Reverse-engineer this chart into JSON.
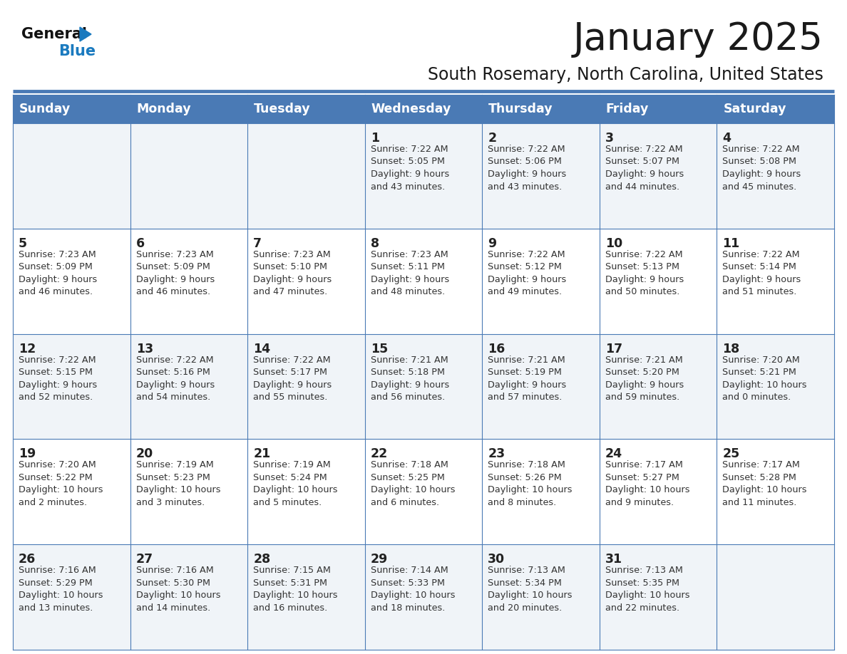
{
  "title": "January 2025",
  "subtitle": "South Rosemary, North Carolina, United States",
  "days_of_week": [
    "Sunday",
    "Monday",
    "Tuesday",
    "Wednesday",
    "Thursday",
    "Friday",
    "Saturday"
  ],
  "header_bg": "#4a7ab5",
  "header_text": "#ffffff",
  "row_bg_light": "#f0f4f8",
  "row_bg_white": "#ffffff",
  "cell_border_color": "#4a7ab5",
  "day_num_color": "#222222",
  "info_text_color": "#333333",
  "title_color": "#1a1a1a",
  "subtitle_color": "#1a1a1a",
  "logo_black": "#111111",
  "logo_blue": "#1a7abf",
  "separator_color": "#4a7ab5",
  "calendar": [
    [
      {
        "day": null,
        "info": ""
      },
      {
        "day": null,
        "info": ""
      },
      {
        "day": null,
        "info": ""
      },
      {
        "day": 1,
        "info": "Sunrise: 7:22 AM\nSunset: 5:05 PM\nDaylight: 9 hours\nand 43 minutes."
      },
      {
        "day": 2,
        "info": "Sunrise: 7:22 AM\nSunset: 5:06 PM\nDaylight: 9 hours\nand 43 minutes."
      },
      {
        "day": 3,
        "info": "Sunrise: 7:22 AM\nSunset: 5:07 PM\nDaylight: 9 hours\nand 44 minutes."
      },
      {
        "day": 4,
        "info": "Sunrise: 7:22 AM\nSunset: 5:08 PM\nDaylight: 9 hours\nand 45 minutes."
      }
    ],
    [
      {
        "day": 5,
        "info": "Sunrise: 7:23 AM\nSunset: 5:09 PM\nDaylight: 9 hours\nand 46 minutes."
      },
      {
        "day": 6,
        "info": "Sunrise: 7:23 AM\nSunset: 5:09 PM\nDaylight: 9 hours\nand 46 minutes."
      },
      {
        "day": 7,
        "info": "Sunrise: 7:23 AM\nSunset: 5:10 PM\nDaylight: 9 hours\nand 47 minutes."
      },
      {
        "day": 8,
        "info": "Sunrise: 7:23 AM\nSunset: 5:11 PM\nDaylight: 9 hours\nand 48 minutes."
      },
      {
        "day": 9,
        "info": "Sunrise: 7:22 AM\nSunset: 5:12 PM\nDaylight: 9 hours\nand 49 minutes."
      },
      {
        "day": 10,
        "info": "Sunrise: 7:22 AM\nSunset: 5:13 PM\nDaylight: 9 hours\nand 50 minutes."
      },
      {
        "day": 11,
        "info": "Sunrise: 7:22 AM\nSunset: 5:14 PM\nDaylight: 9 hours\nand 51 minutes."
      }
    ],
    [
      {
        "day": 12,
        "info": "Sunrise: 7:22 AM\nSunset: 5:15 PM\nDaylight: 9 hours\nand 52 minutes."
      },
      {
        "day": 13,
        "info": "Sunrise: 7:22 AM\nSunset: 5:16 PM\nDaylight: 9 hours\nand 54 minutes."
      },
      {
        "day": 14,
        "info": "Sunrise: 7:22 AM\nSunset: 5:17 PM\nDaylight: 9 hours\nand 55 minutes."
      },
      {
        "day": 15,
        "info": "Sunrise: 7:21 AM\nSunset: 5:18 PM\nDaylight: 9 hours\nand 56 minutes."
      },
      {
        "day": 16,
        "info": "Sunrise: 7:21 AM\nSunset: 5:19 PM\nDaylight: 9 hours\nand 57 minutes."
      },
      {
        "day": 17,
        "info": "Sunrise: 7:21 AM\nSunset: 5:20 PM\nDaylight: 9 hours\nand 59 minutes."
      },
      {
        "day": 18,
        "info": "Sunrise: 7:20 AM\nSunset: 5:21 PM\nDaylight: 10 hours\nand 0 minutes."
      }
    ],
    [
      {
        "day": 19,
        "info": "Sunrise: 7:20 AM\nSunset: 5:22 PM\nDaylight: 10 hours\nand 2 minutes."
      },
      {
        "day": 20,
        "info": "Sunrise: 7:19 AM\nSunset: 5:23 PM\nDaylight: 10 hours\nand 3 minutes."
      },
      {
        "day": 21,
        "info": "Sunrise: 7:19 AM\nSunset: 5:24 PM\nDaylight: 10 hours\nand 5 minutes."
      },
      {
        "day": 22,
        "info": "Sunrise: 7:18 AM\nSunset: 5:25 PM\nDaylight: 10 hours\nand 6 minutes."
      },
      {
        "day": 23,
        "info": "Sunrise: 7:18 AM\nSunset: 5:26 PM\nDaylight: 10 hours\nand 8 minutes."
      },
      {
        "day": 24,
        "info": "Sunrise: 7:17 AM\nSunset: 5:27 PM\nDaylight: 10 hours\nand 9 minutes."
      },
      {
        "day": 25,
        "info": "Sunrise: 7:17 AM\nSunset: 5:28 PM\nDaylight: 10 hours\nand 11 minutes."
      }
    ],
    [
      {
        "day": 26,
        "info": "Sunrise: 7:16 AM\nSunset: 5:29 PM\nDaylight: 10 hours\nand 13 minutes."
      },
      {
        "day": 27,
        "info": "Sunrise: 7:16 AM\nSunset: 5:30 PM\nDaylight: 10 hours\nand 14 minutes."
      },
      {
        "day": 28,
        "info": "Sunrise: 7:15 AM\nSunset: 5:31 PM\nDaylight: 10 hours\nand 16 minutes."
      },
      {
        "day": 29,
        "info": "Sunrise: 7:14 AM\nSunset: 5:33 PM\nDaylight: 10 hours\nand 18 minutes."
      },
      {
        "day": 30,
        "info": "Sunrise: 7:13 AM\nSunset: 5:34 PM\nDaylight: 10 hours\nand 20 minutes."
      },
      {
        "day": 31,
        "info": "Sunrise: 7:13 AM\nSunset: 5:35 PM\nDaylight: 10 hours\nand 22 minutes."
      },
      {
        "day": null,
        "info": ""
      }
    ]
  ]
}
